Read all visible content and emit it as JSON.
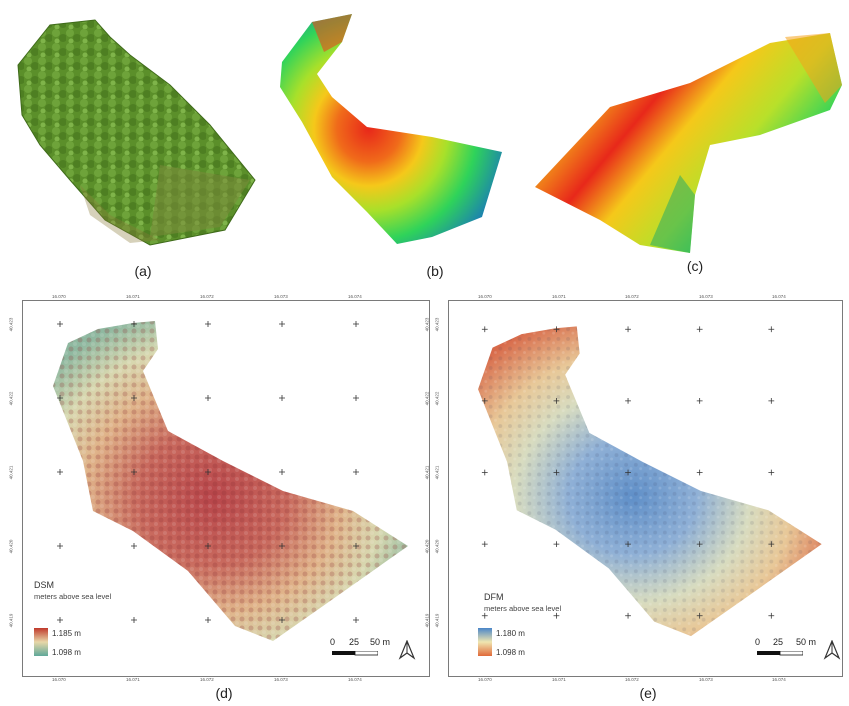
{
  "panels": [
    {
      "id": "a",
      "caption": "(a)"
    },
    {
      "id": "b",
      "caption": "(b)"
    },
    {
      "id": "c",
      "caption": "(c)"
    },
    {
      "id": "d",
      "caption": "(d)"
    },
    {
      "id": "e",
      "caption": "(e)"
    }
  ],
  "dsm": {
    "title": "DSM",
    "subtitle": "meters above sea level",
    "max_label": "1.185 m",
    "min_label": "1.098 m",
    "colors": {
      "high": "#c0392b",
      "mid": "#e8d7a8",
      "low": "#5fa89a"
    }
  },
  "dfm": {
    "title": "DFM",
    "subtitle": "meters above sea level",
    "max_label": "1.180 m",
    "min_label": "1.098 m",
    "colors": {
      "high": "#4a86c8",
      "mid": "#f0e6b0",
      "low": "#e06a3a"
    }
  },
  "scale": {
    "zero": "0",
    "mid": "25",
    "end": "50 m"
  },
  "grid": {
    "lon_labels": [
      "16.070",
      "16.071",
      "16.072",
      "16.073",
      "16.074"
    ],
    "lat_labels": [
      "40.423",
      "40.422",
      "40.421",
      "40.420",
      "40.419"
    ]
  },
  "icons": {
    "north": "north-arrow-icon"
  }
}
